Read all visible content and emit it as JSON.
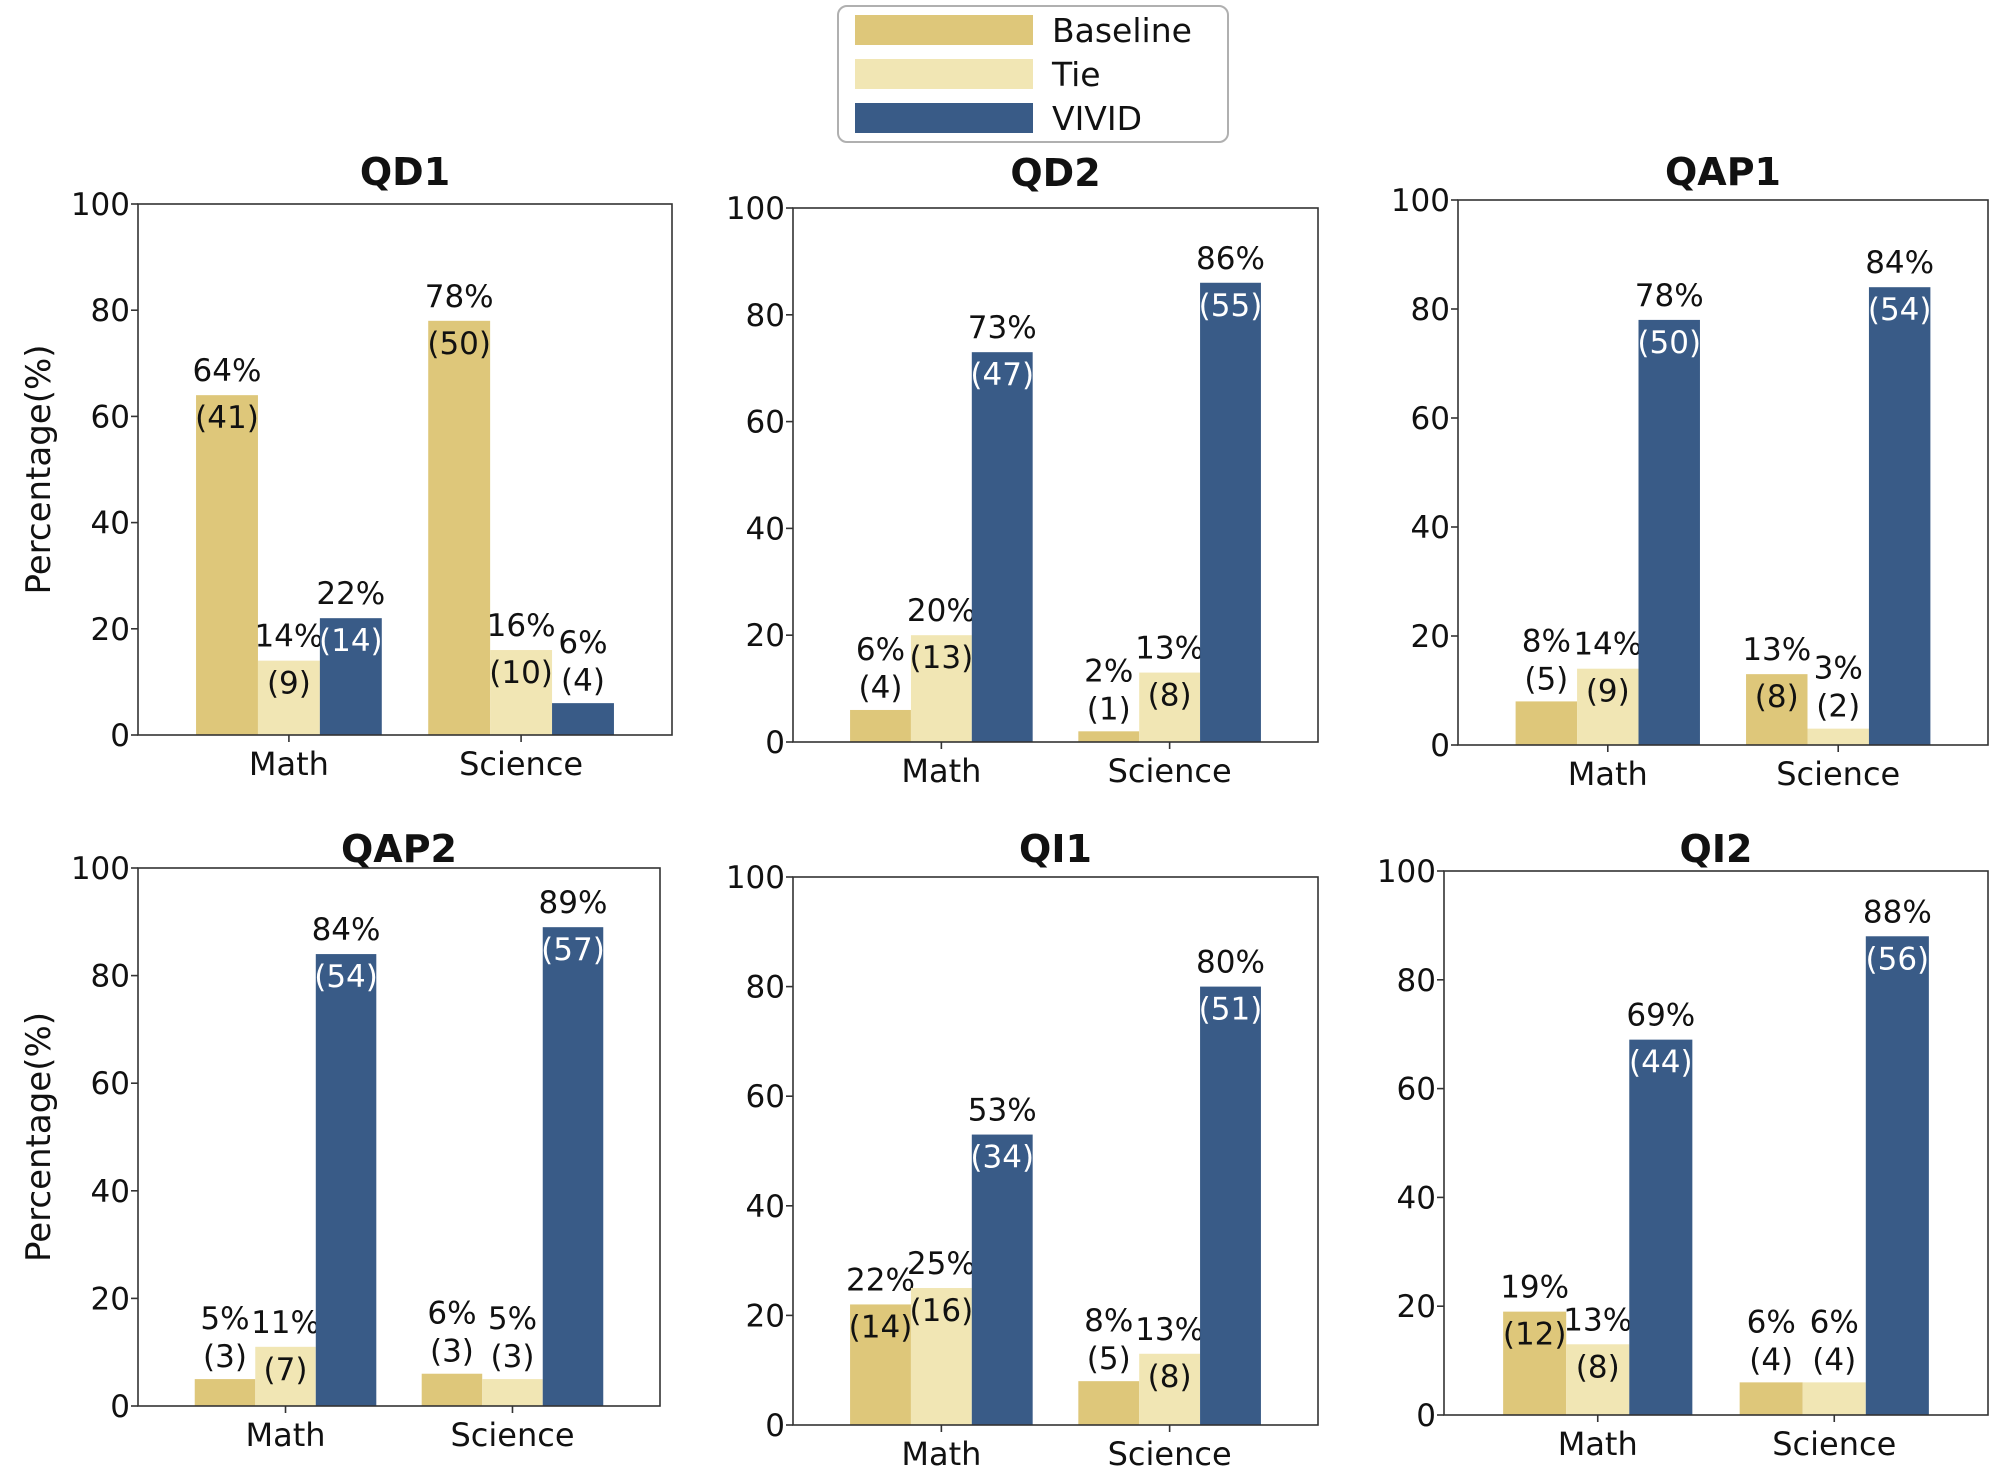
{
  "legend": {
    "items": [
      {
        "key": "baseline",
        "label": "Baseline",
        "color": "#dec77a"
      },
      {
        "key": "tie",
        "label": "Tie",
        "color": "#f1e6b4"
      },
      {
        "key": "vivid",
        "label": "VIVID",
        "color": "#395b87"
      }
    ]
  },
  "chart_data": [
    {
      "type": "bar",
      "title": "QD1",
      "categories": [
        "Math",
        "Science"
      ],
      "ylabel": "Percentage(%)",
      "ylim": [
        0,
        100
      ],
      "yticks": [
        "0",
        "20",
        "40",
        "60",
        "80",
        "100"
      ],
      "series": [
        {
          "name": "Baseline",
          "values": [
            64,
            78
          ],
          "labels": [
            "64%",
            "78%"
          ],
          "counts": [
            "(41)",
            "(50)"
          ]
        },
        {
          "name": "Tie",
          "values": [
            14,
            16
          ],
          "labels": [
            "14%",
            "16%"
          ],
          "counts": [
            "(9)",
            "(10)"
          ]
        },
        {
          "name": "VIVID",
          "values": [
            22,
            6
          ],
          "labels": [
            "22%",
            "6%"
          ],
          "counts": [
            "(14)",
            "(4)"
          ]
        }
      ]
    },
    {
      "type": "bar",
      "title": "QD2",
      "categories": [
        "Math",
        "Science"
      ],
      "ylabel": "",
      "ylim": [
        0,
        100
      ],
      "yticks": [
        "0",
        "20",
        "40",
        "60",
        "80",
        "100"
      ],
      "series": [
        {
          "name": "Baseline",
          "values": [
            6,
            2
          ],
          "labels": [
            "6%",
            "2%"
          ],
          "counts": [
            "(4)",
            "(1)"
          ]
        },
        {
          "name": "Tie",
          "values": [
            20,
            13
          ],
          "labels": [
            "20%",
            "13%"
          ],
          "counts": [
            "(13)",
            "(8)"
          ]
        },
        {
          "name": "VIVID",
          "values": [
            73,
            86
          ],
          "labels": [
            "73%",
            "86%"
          ],
          "counts": [
            "(47)",
            "(55)"
          ]
        }
      ]
    },
    {
      "type": "bar",
      "title": "QAP1",
      "categories": [
        "Math",
        "Science"
      ],
      "ylabel": "",
      "ylim": [
        0,
        100
      ],
      "yticks": [
        "0",
        "20",
        "40",
        "60",
        "80",
        "100"
      ],
      "series": [
        {
          "name": "Baseline",
          "values": [
            8,
            13
          ],
          "labels": [
            "8%",
            "13%"
          ],
          "counts": [
            "(5)",
            "(8)"
          ]
        },
        {
          "name": "Tie",
          "values": [
            14,
            3
          ],
          "labels": [
            "14%",
            "3%"
          ],
          "counts": [
            "(9)",
            "(2)"
          ]
        },
        {
          "name": "VIVID",
          "values": [
            78,
            84
          ],
          "labels": [
            "78%",
            "84%"
          ],
          "counts": [
            "(50)",
            "(54)"
          ]
        }
      ]
    },
    {
      "type": "bar",
      "title": "QAP2",
      "categories": [
        "Math",
        "Science"
      ],
      "ylabel": "Percentage(%)",
      "ylim": [
        0,
        100
      ],
      "yticks": [
        "0",
        "20",
        "40",
        "60",
        "80",
        "100"
      ],
      "series": [
        {
          "name": "Baseline",
          "values": [
            5,
            6
          ],
          "labels": [
            "5%",
            "6%"
          ],
          "counts": [
            "(3)",
            "(3)"
          ]
        },
        {
          "name": "Tie",
          "values": [
            11,
            5
          ],
          "labels": [
            "11%",
            "5%"
          ],
          "counts": [
            "(7)",
            "(3)"
          ]
        },
        {
          "name": "VIVID",
          "values": [
            84,
            89
          ],
          "labels": [
            "84%",
            "89%"
          ],
          "counts": [
            "(54)",
            "(57)"
          ]
        }
      ]
    },
    {
      "type": "bar",
      "title": "QI1",
      "categories": [
        "Math",
        "Science"
      ],
      "ylabel": "",
      "ylim": [
        0,
        100
      ],
      "yticks": [
        "0",
        "20",
        "40",
        "60",
        "80",
        "100"
      ],
      "series": [
        {
          "name": "Baseline",
          "values": [
            22,
            8
          ],
          "labels": [
            "22%",
            "8%"
          ],
          "counts": [
            "(14)",
            "(5)"
          ]
        },
        {
          "name": "Tie",
          "values": [
            25,
            13
          ],
          "labels": [
            "25%",
            "13%"
          ],
          "counts": [
            "(16)",
            "(8)"
          ]
        },
        {
          "name": "VIVID",
          "values": [
            53,
            80
          ],
          "labels": [
            "53%",
            "80%"
          ],
          "counts": [
            "(34)",
            "(51)"
          ]
        }
      ]
    },
    {
      "type": "bar",
      "title": "QI2",
      "categories": [
        "Math",
        "Science"
      ],
      "ylabel": "",
      "ylim": [
        0,
        100
      ],
      "yticks": [
        "0",
        "20",
        "40",
        "60",
        "80",
        "100"
      ],
      "series": [
        {
          "name": "Baseline",
          "values": [
            19,
            6
          ],
          "labels": [
            "19%",
            "6%"
          ],
          "counts": [
            "(12)",
            "(4)"
          ]
        },
        {
          "name": "Tie",
          "values": [
            13,
            6
          ],
          "labels": [
            "13%",
            "6%"
          ],
          "counts": [
            "(8)",
            "(4)"
          ]
        },
        {
          "name": "VIVID",
          "values": [
            69,
            88
          ],
          "labels": [
            "69%",
            "88%"
          ],
          "counts": [
            "(44)",
            "(56)"
          ]
        }
      ]
    }
  ]
}
